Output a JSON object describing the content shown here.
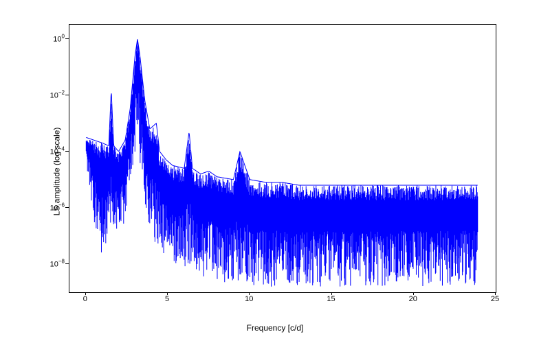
{
  "chart": {
    "type": "line",
    "xlabel": "Frequency [c/d]",
    "ylabel": "LS amplitude (log scale)",
    "label_fontsize": 12,
    "tick_fontsize": 11,
    "line_color": "#0000ff",
    "line_width": 1.0,
    "background_color": "#ffffff",
    "border_color": "#000000",
    "xlim": [
      -1,
      25
    ],
    "xticks": [
      0,
      5,
      10,
      15,
      20,
      25
    ],
    "xtick_labels": [
      "0",
      "5",
      "10",
      "15",
      "20",
      "25"
    ],
    "yscale": "log",
    "ylim_log10": [
      -9,
      0.5
    ],
    "yticks_log10": [
      -8,
      -6,
      -4,
      -2,
      0
    ],
    "ytick_labels_html": [
      "10<span class='sup'>−8</span>",
      "10<span class='sup'>−6</span>",
      "10<span class='sup'>−4</span>",
      "10<span class='sup'>−2</span>",
      "10<span class='sup'>0</span>"
    ],
    "envelope_upper_log10": [
      [
        0.0,
        -3.5
      ],
      [
        0.5,
        -3.6
      ],
      [
        1.0,
        -3.7
      ],
      [
        1.4,
        -3.8
      ],
      [
        1.55,
        -1.8
      ],
      [
        1.7,
        -3.8
      ],
      [
        2.0,
        -4.0
      ],
      [
        2.4,
        -3.6
      ],
      [
        2.7,
        -2.5
      ],
      [
        3.0,
        -0.6
      ],
      [
        3.15,
        0.0
      ],
      [
        3.3,
        -0.6
      ],
      [
        3.6,
        -2.2
      ],
      [
        3.9,
        -3.2
      ],
      [
        4.3,
        -3.0
      ],
      [
        4.5,
        -4.0
      ],
      [
        4.9,
        -4.3
      ],
      [
        5.3,
        -4.5
      ],
      [
        6.0,
        -4.6
      ],
      [
        6.3,
        -3.3
      ],
      [
        6.5,
        -4.6
      ],
      [
        7.0,
        -4.8
      ],
      [
        7.5,
        -4.7
      ],
      [
        8.0,
        -4.9
      ],
      [
        9.0,
        -5.0
      ],
      [
        9.4,
        -4.0
      ],
      [
        10.0,
        -5.0
      ],
      [
        11.0,
        -5.1
      ],
      [
        12.0,
        -5.1
      ],
      [
        13.0,
        -5.2
      ],
      [
        14.0,
        -5.2
      ],
      [
        15.0,
        -5.2
      ],
      [
        16.0,
        -5.2
      ],
      [
        17.0,
        -5.2
      ],
      [
        18.0,
        -5.2
      ],
      [
        19.0,
        -5.2
      ],
      [
        20.0,
        -5.2
      ],
      [
        21.0,
        -5.2
      ],
      [
        22.0,
        -5.2
      ],
      [
        23.0,
        -5.2
      ],
      [
        23.9,
        -5.2
      ]
    ],
    "envelope_lower_log10": [
      [
        0.0,
        -4.3
      ],
      [
        0.5,
        -6.5
      ],
      [
        1.0,
        -7.8
      ],
      [
        1.5,
        -6.8
      ],
      [
        2.0,
        -7.0
      ],
      [
        2.4,
        -6.5
      ],
      [
        2.7,
        -5.5
      ],
      [
        3.0,
        -4.0
      ],
      [
        3.15,
        -3.0
      ],
      [
        3.3,
        -4.5
      ],
      [
        3.6,
        -6.0
      ],
      [
        4.0,
        -7.0
      ],
      [
        4.5,
        -7.5
      ],
      [
        5.0,
        -7.8
      ],
      [
        5.5,
        -8.0
      ],
      [
        6.0,
        -8.2
      ],
      [
        7.0,
        -8.4
      ],
      [
        8.0,
        -8.6
      ],
      [
        9.0,
        -8.7
      ],
      [
        10.0,
        -8.8
      ],
      [
        11.0,
        -8.8
      ],
      [
        12.0,
        -8.8
      ],
      [
        13.0,
        -8.8
      ],
      [
        14.0,
        -8.8
      ],
      [
        15.0,
        -8.8
      ],
      [
        16.0,
        -8.8
      ],
      [
        17.0,
        -8.8
      ],
      [
        18.0,
        -8.8
      ],
      [
        19.0,
        -8.8
      ],
      [
        20.0,
        -8.8
      ],
      [
        21.0,
        -8.8
      ],
      [
        22.0,
        -8.8
      ],
      [
        23.0,
        -8.8
      ],
      [
        23.9,
        -8.8
      ]
    ],
    "noise_density_lines": 900,
    "noise_seed": 42
  }
}
